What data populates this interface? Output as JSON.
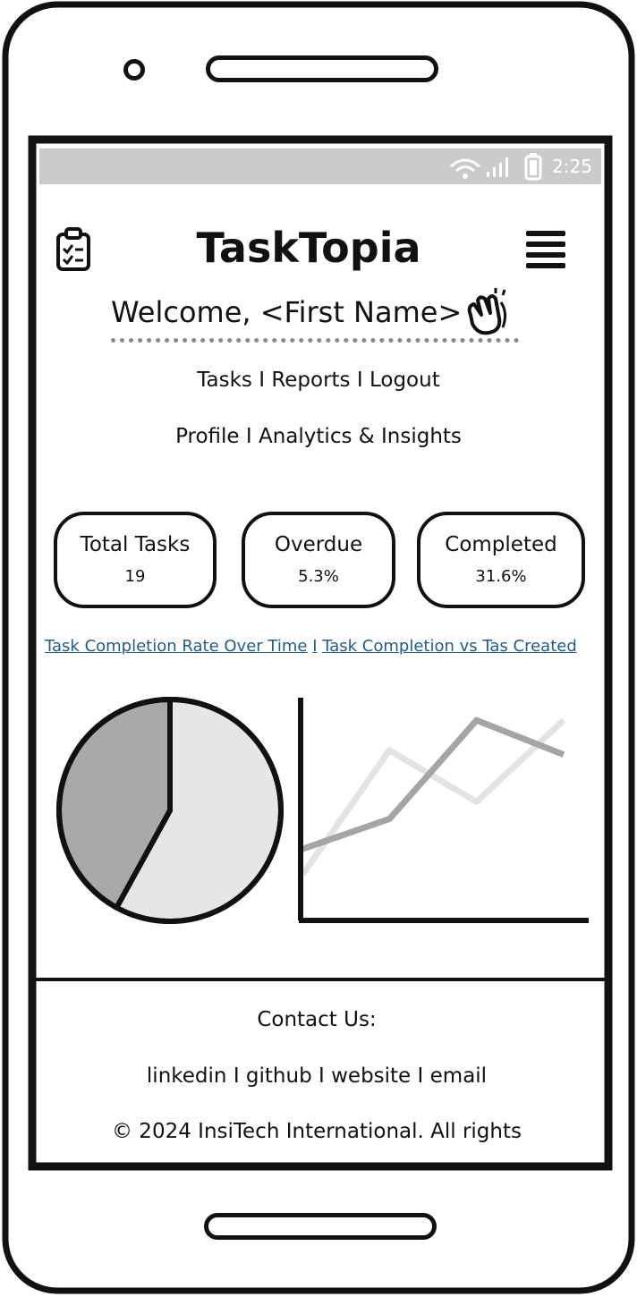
{
  "status_bar": {
    "time": "2:25"
  },
  "header": {
    "title": "TaskTopia",
    "welcome": "Welcome, <First Name>"
  },
  "nav": {
    "row1": [
      "Tasks",
      "Reports",
      "Logout"
    ],
    "row2": [
      "Profile",
      "Analytics & Insights"
    ],
    "separator": "I"
  },
  "stats": [
    {
      "label": "Total Tasks",
      "value": "19"
    },
    {
      "label": "Overdue",
      "value": "5.3%"
    },
    {
      "label": "Completed",
      "value": "31.6%"
    }
  ],
  "chart_links": {
    "link1": "Task Completion Rate Over Time",
    "separator": "I",
    "link2": "Task Completion vs Tas Created"
  },
  "footer": {
    "contact": "Contact Us:",
    "links": [
      "linkedin",
      "github",
      "website",
      "email"
    ],
    "separator": "I",
    "copyright": "© 2024 InsiTech International. All rights"
  },
  "chart_data": [
    {
      "type": "pie",
      "values": [
        58,
        42
      ],
      "colors": [
        "#e6e6e6",
        "#a9a9a9"
      ]
    },
    {
      "type": "line",
      "x": [
        0,
        1,
        2,
        3
      ],
      "series": [
        {
          "values": [
            1.0,
            3.9,
            2.7,
            4.6
          ],
          "color": "#e3e3e3"
        },
        {
          "values": [
            1.6,
            2.3,
            4.6,
            3.8
          ],
          "color": "#a5a5a5"
        }
      ],
      "ylim": [
        0,
        5
      ]
    }
  ],
  "colors": {
    "status_bar": "#cbcbcb",
    "link": "#1f5b8e",
    "frame": "#111111"
  }
}
